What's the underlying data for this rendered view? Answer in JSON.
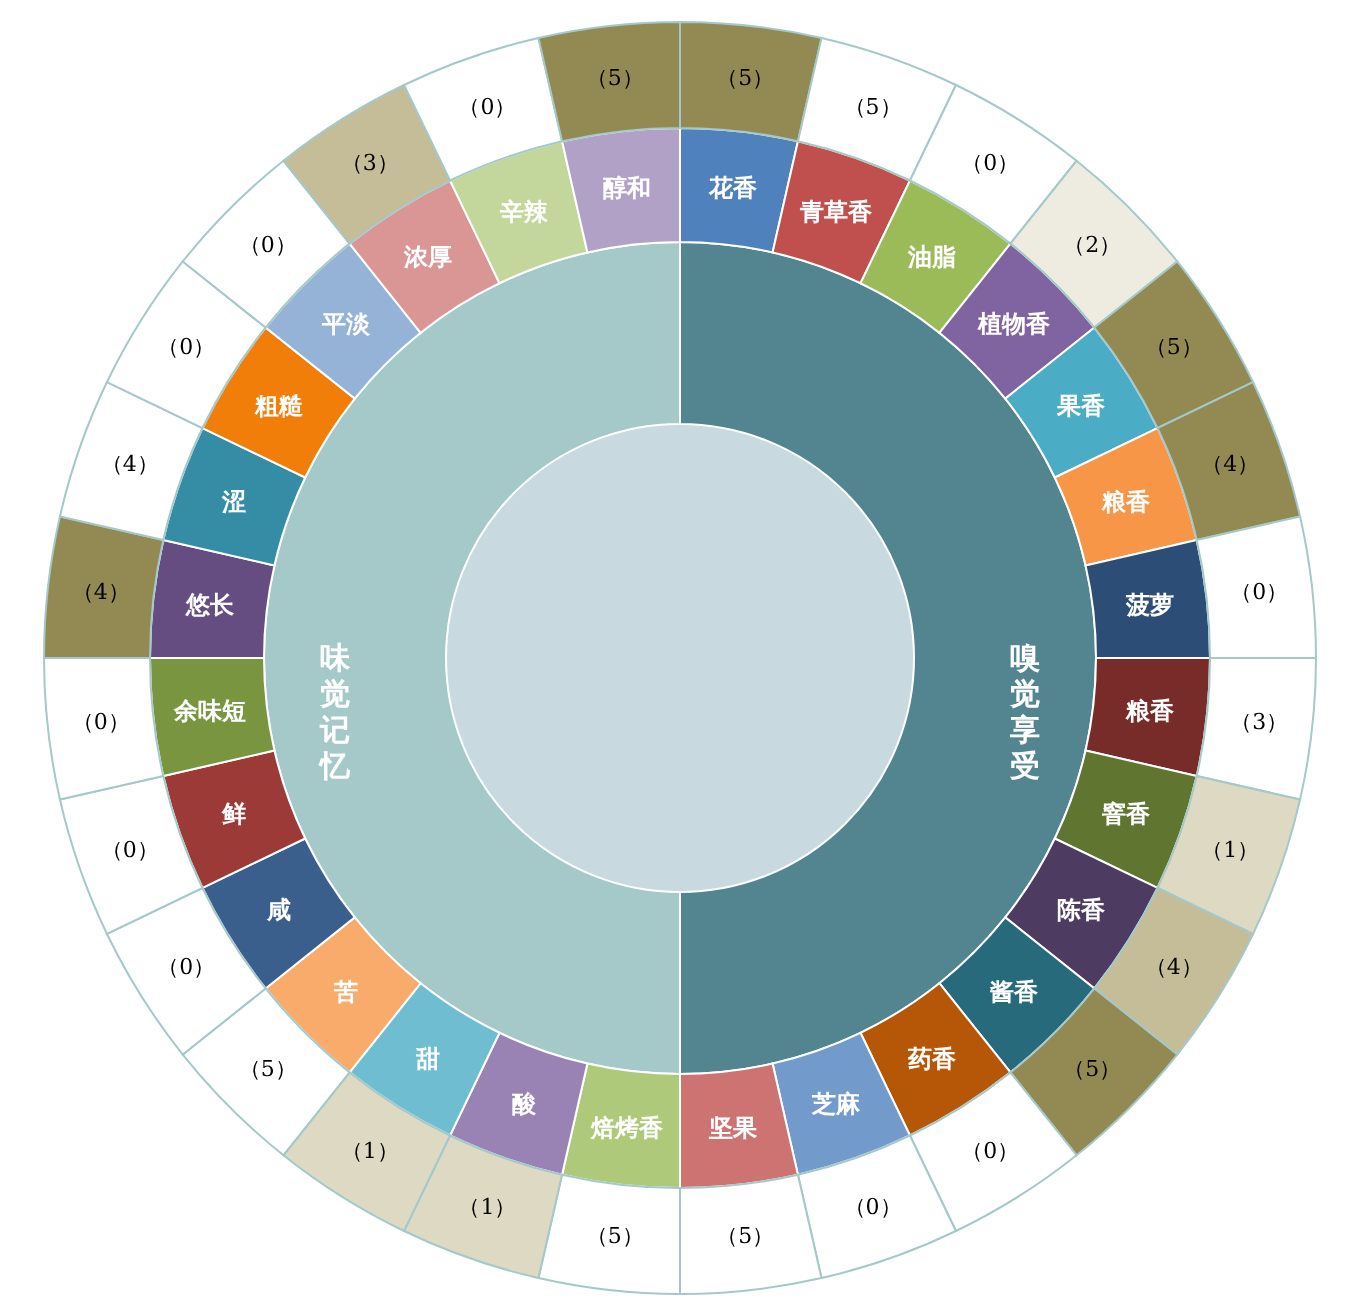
{
  "chart_data": [
    {
      "type": "donut",
      "categories": [
        "嗅觉享受",
        "味觉记忆"
      ],
      "values": [
        50,
        50
      ],
      "colors": [
        "#52858f",
        "#a5c8c9"
      ]
    },
    {
      "type": "other",
      "categories": [
        "花香",
        "青草香",
        "油脂",
        "植物香",
        "果香",
        "粮香",
        "菠萝",
        "粮香",
        "窨香",
        "陈香",
        "酱香",
        "药香",
        "芝麻",
        "坚果",
        "焙烤香",
        "酸",
        "甜",
        "苦",
        "咸",
        "鲜",
        "余味短",
        "悠长",
        "涩",
        "粗糙",
        "平淡",
        "浓厚",
        "辛辣",
        "醇和"
      ],
      "colors": [
        "#4f81bd",
        "#c0504d",
        "#9bbb59",
        "#8064a2",
        "#4bacc6",
        "#f79646",
        "#2c4d75",
        "#772c2a",
        "#5f7530",
        "#4d3b62",
        "#276a7c",
        "#b65708",
        "#729aca",
        "#cd7371",
        "#afc97a",
        "#9983b5",
        "#6fbdd1",
        "#f9ab6b",
        "#3a5f8c",
        "#9c3a38",
        "#799540",
        "#654c81",
        "#358da5",
        "#f07e09",
        "#95b3d7",
        "#d99694",
        "#c3d69b",
        "#b2a1c7"
      ],
      "series": [
        {
          "values": [
            5,
            5,
            0,
            2,
            5,
            4,
            0,
            3,
            1,
            4,
            5,
            0,
            0,
            5,
            5,
            1,
            1,
            5,
            0,
            0,
            0,
            4,
            4,
            0,
            0,
            3,
            0,
            5
          ],
          "value_labels": [
            "（5）",
            "（5）",
            "（0）",
            "（2）",
            "（5）",
            "（4）",
            "（0）",
            "（3）",
            "（1）",
            "（4）",
            "（5）",
            "（0）",
            "（0）",
            "（5）",
            "（5）",
            "（1）",
            "（1）",
            "（5）",
            "（0）",
            "（0）",
            "（0）",
            "（4）",
            "（4）",
            "（0）",
            "（0）",
            "（3）",
            "（0）",
            "（5）"
          ],
          "colors": [
            "#938953",
            "#ffffff",
            "#ffffff",
            "#eeece1",
            "#938953",
            "#938953",
            "#ffffff",
            "#ffffff",
            "#ddd9c3",
            "#c4bd97",
            "#938953",
            "#ffffff",
            "#ffffff",
            "#ffffff",
            "#ffffff",
            "#ddd9c3",
            "#ddd9c3",
            "#ffffff",
            "#ffffff",
            "#ffffff",
            "#ffffff",
            "#938953",
            "#ffffff",
            "#ffffff",
            "#ffffff",
            "#c4bd97",
            "#ffffff",
            "#938953"
          ]
        }
      ]
    }
  ]
}
